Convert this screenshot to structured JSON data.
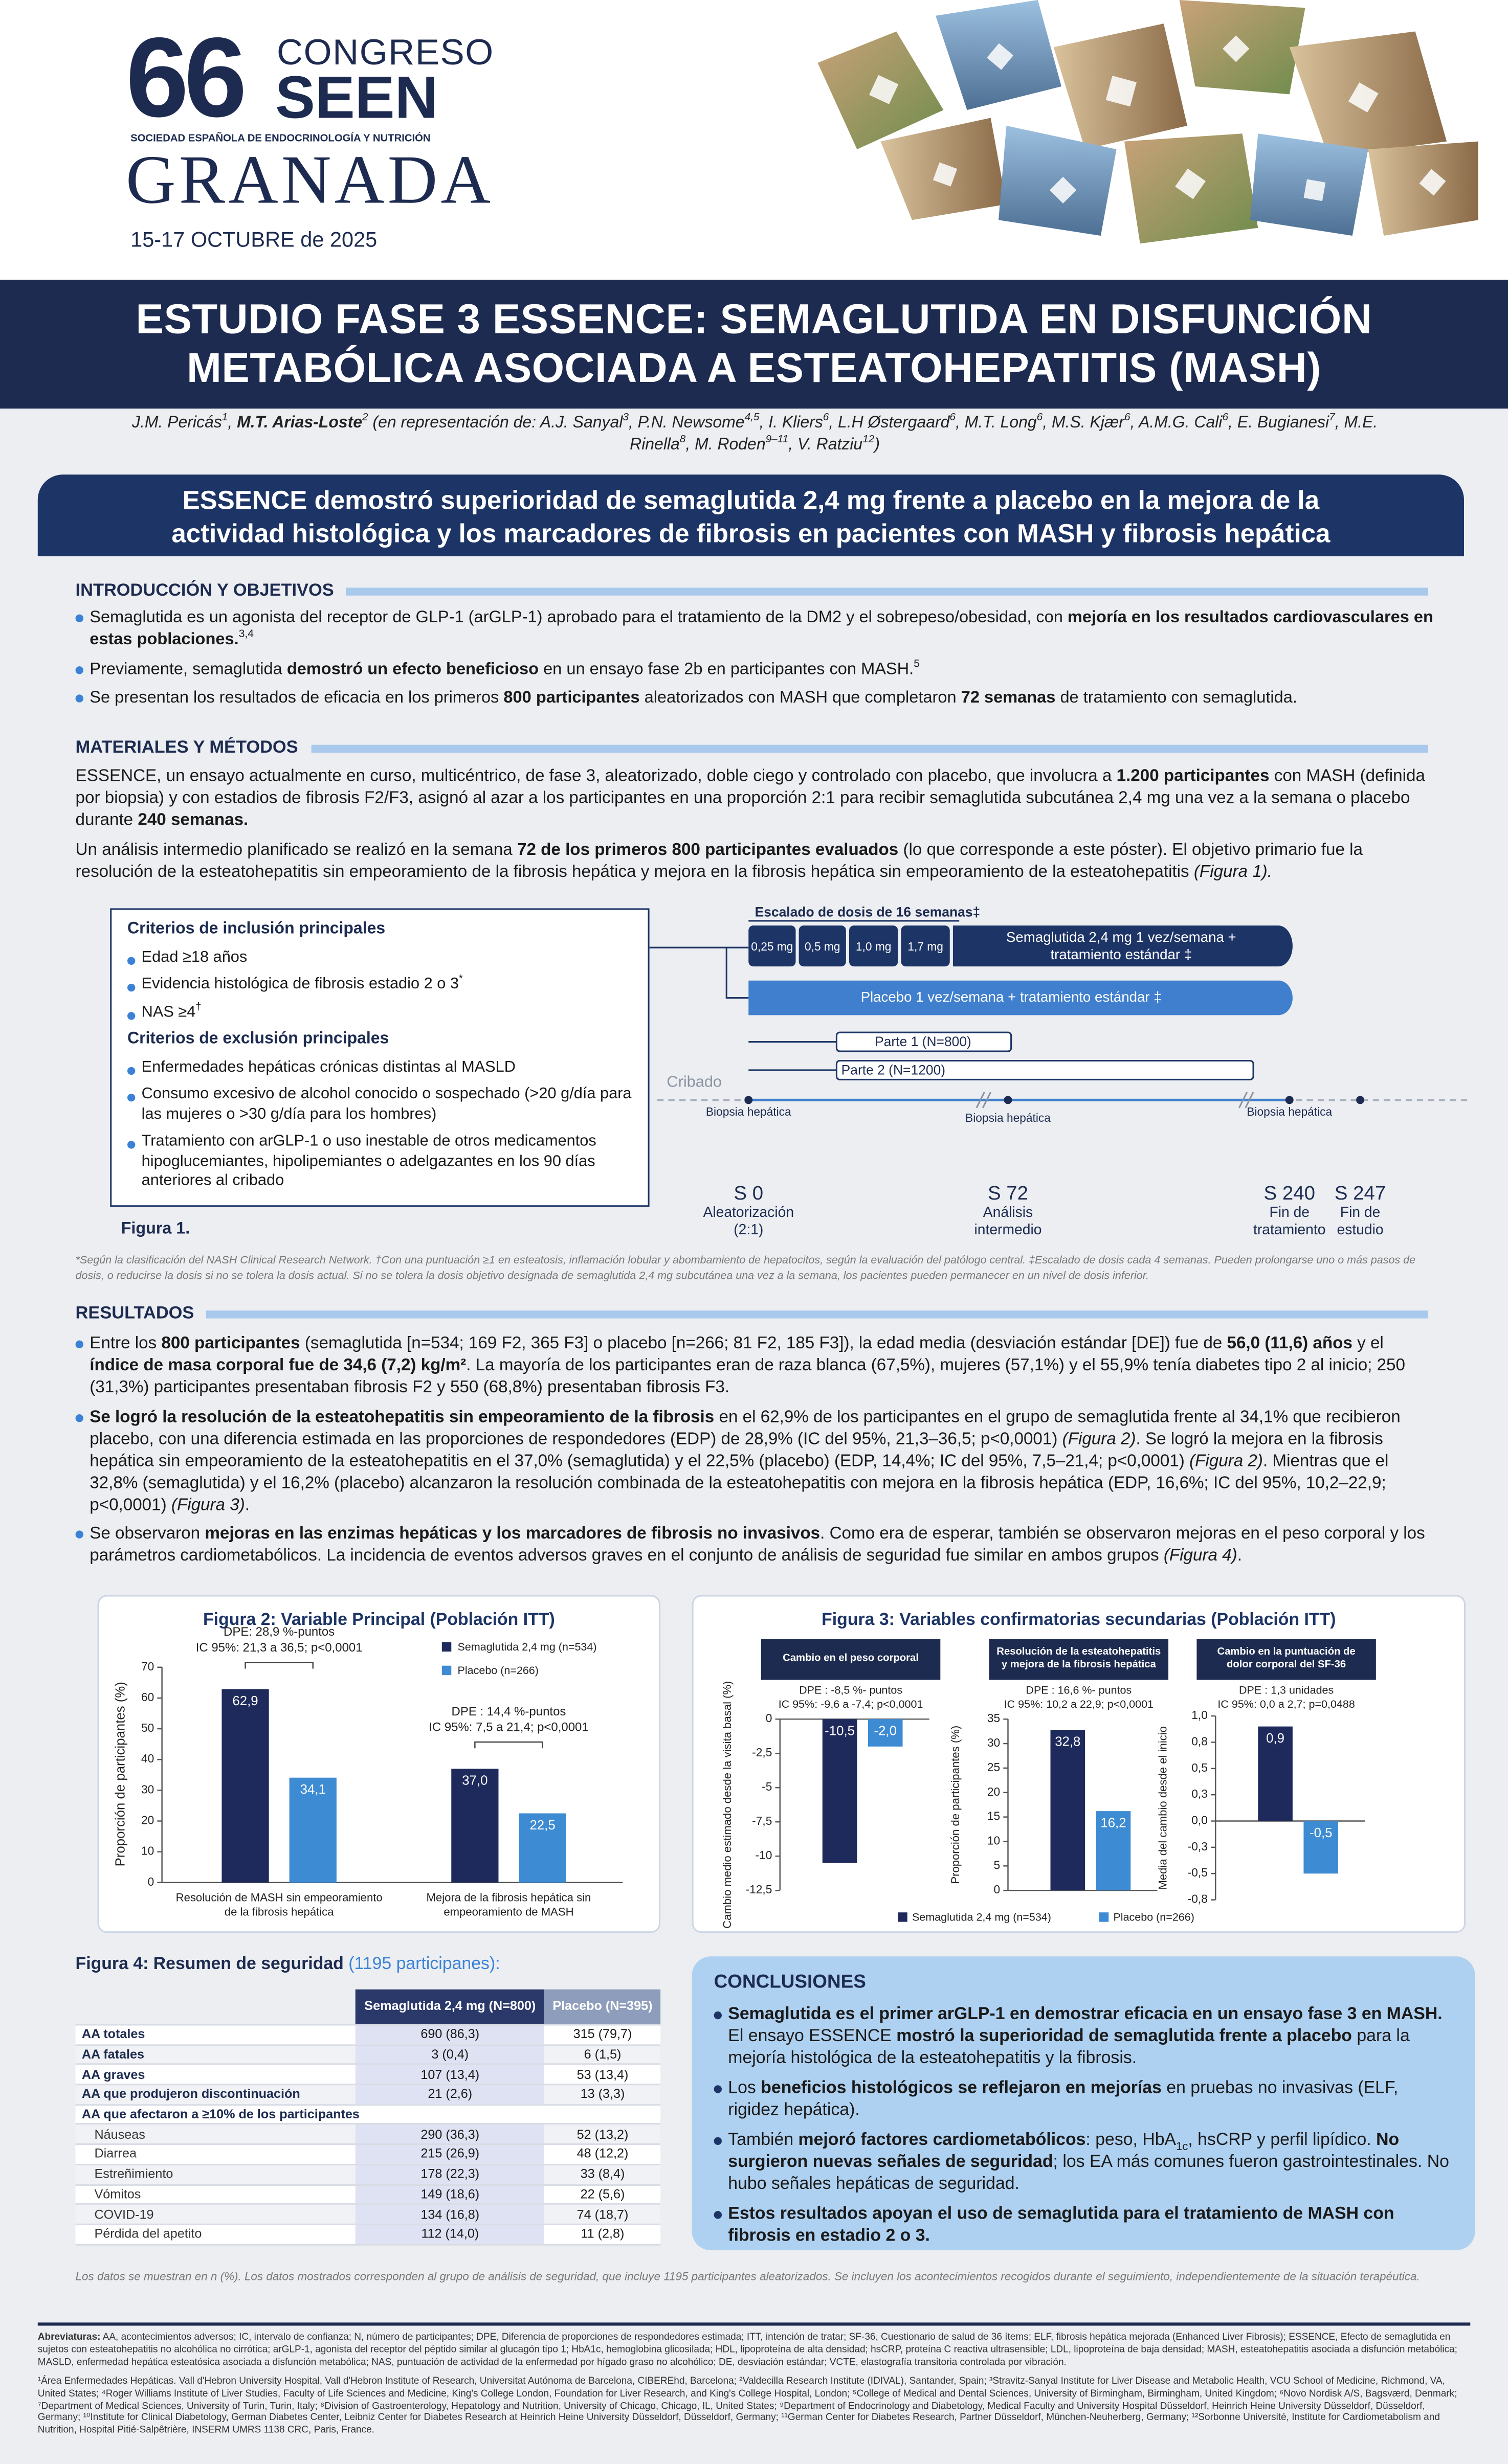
{
  "header": {
    "number": "66",
    "congress": "CONGRESO",
    "seen": "SEEN",
    "society": "SOCIEDAD ESPAÑOLA DE ENDOCRINOLOGÍA Y NUTRICIÓN",
    "city": "GRANADA",
    "dates": "15-17 OCTUBRE de 2025"
  },
  "title": [
    "ESTUDIO FASE 3 ESSENCE: SEMAGLUTIDA EN DISFUNCIÓN",
    "METABÓLICA ASOCIADA A ESTEATOHEPATITIS (MASH)"
  ],
  "authors": [
    "J.M. Pericás",
    {
      "sup": "1"
    },
    ", ",
    {
      "bold": "M.T. Arias-Loste"
    },
    {
      "sup": "2"
    },
    " (en representación de: A.J. Sanyal",
    {
      "sup": "3"
    },
    ", P.N. Newsome",
    {
      "sup": "4,5"
    },
    ", I. Kliers",
    {
      "sup": "6"
    },
    ", L.H Østergaard",
    {
      "sup": "6"
    },
    ", M.T. Long",
    {
      "sup": "6"
    },
    ", M.S. Kjær",
    {
      "sup": "6"
    },
    ", A.M.G. Cali",
    {
      "sup": "6"
    },
    ", E. Bugianesi",
    {
      "sup": "7"
    },
    ", M.E. Rinella",
    {
      "sup": "8"
    },
    ", M. Roden",
    {
      "sup": "9–11"
    },
    ", V. Ratziu",
    {
      "sup": "12"
    },
    ")"
  ],
  "banner": [
    "ESSENCE demostró superioridad de semaglutida 2,4 mg frente a placebo en la mejora de la",
    "actividad histológica y los marcadores de fibrosis en pacientes con MASH y fibrosis hepática"
  ],
  "intro": {
    "heading": "INTRODUCCIÓN Y OBJETIVOS",
    "bullets": [
      [
        "Semaglutida es un agonista del receptor de GLP-1 (arGLP-1) aprobado para el tratamiento de la DM2 y el sobrepeso/obesidad, con ",
        {
          "bold": "mejoría en los resultados cardiovasculares en estas poblaciones."
        },
        {
          "sup": "3,4"
        }
      ],
      [
        "Previamente, semaglutida ",
        {
          "bold": "demostró un efecto beneficioso"
        },
        " en un ensayo fase 2b en participantes con MASH.",
        {
          "sup": "5"
        }
      ],
      [
        "Se presentan los resultados de eficacia en los primeros ",
        {
          "bold": "800 participantes"
        },
        " aleatorizados con MASH que completaron ",
        {
          "bold": "72 semanas"
        },
        " de tratamiento con semaglutida."
      ]
    ]
  },
  "methods": {
    "heading": "MATERIALES Y MÉTODOS",
    "paragraphs": [
      [
        "ESSENCE, un ensayo actualmente en curso, multicéntrico, de fase 3, aleatorizado, doble ciego y controlado con placebo, que involucra a ",
        {
          "bold": "1.200 participantes"
        },
        " con MASH (definida por biopsia) y con estadios de fibrosis F2/F3, asignó al azar a los participantes en una proporción 2:1 para recibir semaglutida subcutánea 2,4 mg una vez a la semana o placebo durante ",
        {
          "bold": "240 semanas."
        }
      ],
      [
        "Un análisis intermedio planificado se realizó en la semana ",
        {
          "bold": "72 de los primeros 800 participantes evaluados"
        },
        " (lo que corresponde a este póster). El objetivo primario fue la resolución de la esteatohepatitis sin empeoramiento de la fibrosis hepática y mejora en la fibrosis hepática sin empeoramiento de la esteatohepatitis ",
        {
          "italic": "(Figura 1)."
        }
      ]
    ]
  },
  "figure1": {
    "inclusion_title": "Criterios de inclusión principales",
    "inclusion": [
      [
        "Edad ≥18 años"
      ],
      [
        "Evidencia histológica de fibrosis estadio 2 o 3",
        {
          "sup": "*"
        }
      ],
      [
        "NAS ≥4",
        {
          "sup": "†"
        }
      ]
    ],
    "exclusion_title": "Criterios de exclusión principales",
    "exclusion": [
      [
        "Enfermedades hepáticas crónicas distintas al MASLD"
      ],
      [
        "Consumo excesivo de alcohol conocido o sospechado (>20 g/día para las mujeres o >30 g/día para los hombres)"
      ],
      [
        "Tratamiento con arGLP-1 o uso inestable de otros medicamentos hipoglucemiantes, hipolipemiantes o adelgazantes en los 90 días anteriores al cribado"
      ]
    ],
    "caption": "Figura 1.",
    "escalation_title": "Escalado de dosis de 16 semanas‡",
    "doses": [
      "0,25 mg",
      "0,5 mg",
      "1,0 mg",
      "1,7 mg"
    ],
    "semaglutide_arm": [
      "Semaglutida 2,4 mg 1 vez/semana +",
      "tratamiento estándar ‡"
    ],
    "placebo_arm": "Placebo 1 vez/semana + tratamiento estándar ‡",
    "part1": "Parte 1 (N=800)",
    "part2": "Parte 2 (N=1200)",
    "screening": "Cribado",
    "biopsy": "Biopsia hepática",
    "milestones": [
      {
        "week": "S 0",
        "label": [
          "Aleatorización",
          "(2:1)"
        ]
      },
      {
        "week": "S 72",
        "label": [
          "Análisis",
          "intermedio"
        ]
      },
      {
        "week": "S 240",
        "label": [
          "Fin de",
          "tratamiento"
        ]
      },
      {
        "week": "S 247",
        "label": [
          "Fin de",
          "estudio"
        ]
      }
    ]
  },
  "footnote1": "*Según la clasificación del NASH Clinical Research Network. †Con una puntuación ≥1 en esteatosis, inflamación lobular y abombamiento de hepatocitos, según la evaluación del patólogo central. ‡Escalado de dosis cada 4 semanas. Pueden prolongarse uno o más pasos de dosis, o reducirse la dosis si no se tolera la dosis actual. Si no se tolera la dosis objetivo designada de semaglutida 2,4 mg subcutánea una vez a la semana, los pacientes pueden permanecer en un nivel de dosis inferior.",
  "results": {
    "heading": "RESULTADOS",
    "bullets": [
      [
        "Entre los ",
        {
          "bold": "800 participantes"
        },
        " (semaglutida [n=534; 169 F2, 365 F3] o placebo [n=266; 81 F2, 185 F3]), la edad media (desviación estándar [DE]) fue de ",
        {
          "bold": "56,0 (11,6) años"
        },
        " y el ",
        {
          "bold": "índice de masa corporal fue de 34,6 (7,2) kg/m²"
        },
        ". La mayoría de los participantes eran de raza blanca (67,5%), mujeres (57,1%) y el 55,9% tenía diabetes tipo 2 al inicio; 250 (31,3%) participantes presentaban fibrosis F2 y 550 (68,8%) presentaban fibrosis F3."
      ],
      [
        {
          "bold": "Se logró la resolución de la esteatohepatitis sin empeoramiento de la fibrosis"
        },
        " en el 62,9% de los participantes en el grupo de semaglutida frente al 34,1% que recibieron placebo, con una diferencia estimada en las proporciones de respondedores (EDP) de 28,9% (IC del 95%, 21,3–36,5; p<0,0001) ",
        {
          "italic": "(Figura 2)"
        },
        ". Se logró la mejora en la fibrosis hepática sin empeoramiento de la esteatohepatitis en el 37,0% (semaglutida) y el 22,5% (placebo) (EDP, 14,4%; IC del 95%, 7,5–21,4; p<0,0001) ",
        {
          "italic": "(Figura 2)"
        },
        ". Mientras que el 32,8% (semaglutida) y el 16,2% (placebo) alcanzaron la resolución combinada de la esteatohepatitis con mejora en la fibrosis hepática (EDP, 16,6%; IC del 95%, 10,2–22,9; p<0,0001) ",
        {
          "italic": "(Figura 3)"
        },
        "."
      ],
      [
        "Se observaron ",
        {
          "bold": "mejoras en las enzimas hepáticas y los marcadores de fibrosis no invasivos"
        },
        ". Como era de esperar, también se observaron mejoras en el peso corporal y los parámetros cardiometabólicos. La incidencia de eventos adversos graves en el conjunto de análisis de seguridad fue similar en ambos grupos ",
        {
          "italic": "(Figura 4)"
        },
        "."
      ]
    ]
  },
  "figure2": {
    "type": "bar",
    "title": "Figura 2: Variable Principal (Población ITT)",
    "ylabel": "Proporción de participantes (%)",
    "categories": [
      "Resolución de MASH sin empeoramiento de la fibrosis hepática",
      "Mejora de la fibrosis hepática sin empeoramiento de MASH"
    ],
    "series": [
      {
        "name": "Semaglutida 2,4 mg (n=534)",
        "color": "#1f2a5c",
        "values": [
          62.9,
          37.0
        ],
        "value_labels": [
          "62,9",
          "37,0"
        ]
      },
      {
        "name": "Placebo (n=266)",
        "color": "#3d8bd3",
        "values": [
          34.1,
          22.5
        ],
        "value_labels": [
          "34,1",
          "22,5"
        ]
      }
    ],
    "ylim": [
      0,
      70
    ],
    "yticks": [
      0,
      10,
      20,
      30,
      40,
      50,
      60,
      70
    ],
    "annotations": [
      [
        "DPE: 28,9 %-puntos",
        "IC 95%: 21,3 a 36,5; p<0,0001"
      ],
      [
        "DPE : 14,4 %-puntos",
        "IC 95%: 7,5 a 21,4; p<0,0001"
      ]
    ]
  },
  "figure3": {
    "title": "Figura 3: Variables confirmatorias secundarias (Población ITT)",
    "series": [
      {
        "name": "Semaglutida 2,4 mg (n=534)",
        "color": "#1f2a5c"
      },
      {
        "name": "Placebo (n=266)",
        "color": "#3d8bd3"
      }
    ],
    "panels": [
      {
        "type": "bar",
        "header": "Cambio en el peso corporal",
        "annotations": [
          "DPE : -8,5 %- puntos",
          "IC 95%: -9,6 a -7,4; p<0,0001"
        ],
        "ylabel": "Cambio medio estimado desde la visita basal (%)",
        "ylim": [
          -12.5,
          0
        ],
        "yticks": [
          0,
          {
            "value": -2.5,
            "label": "-2,5"
          },
          -5,
          {
            "value": -7.5,
            "label": "-7,5"
          },
          -10,
          {
            "value": -12.5,
            "label": "-12,5"
          }
        ],
        "values": [
          -10.5,
          -2.0
        ],
        "value_labels": [
          "-10,5",
          "-2,0"
        ]
      },
      {
        "type": "bar",
        "header": "Resolución de la esteatohepatitis y mejora de la fibrosis hepática",
        "annotations": [
          "DPE : 16,6 %- puntos",
          "IC 95%: 10,2 a 22,9; p<0,0001"
        ],
        "ylabel": "Proporción de participantes (%)",
        "ylim": [
          0,
          35
        ],
        "yticks": [
          0,
          5,
          10,
          15,
          20,
          25,
          30,
          35
        ],
        "values": [
          32.8,
          16.2
        ],
        "value_labels": [
          "32,8",
          "16,2"
        ]
      },
      {
        "type": "bar",
        "header": "Cambio en la puntuación de dolor corporal del SF-36",
        "annotations": [
          "DPE : 1,3 unidades",
          "IC 95%: 0,0 a 2,7; p=0,0488"
        ],
        "ylabel": "Media del cambio desde el inicio",
        "ylim": [
          -0.75,
          1.0
        ],
        "yticks": [
          {
            "value": 1.0,
            "label": "1,0"
          },
          {
            "value": 0.75,
            "label": "0,8"
          },
          {
            "value": 0.5,
            "label": "0,5"
          },
          {
            "value": 0.25,
            "label": "0,3"
          },
          {
            "value": 0,
            "label": "0,0"
          },
          {
            "value": -0.25,
            "label": "-0,3"
          },
          {
            "value": -0.5,
            "label": "-0,5"
          },
          {
            "value": -0.75,
            "label": "-0,8"
          }
        ],
        "values": [
          0.9,
          -0.5
        ],
        "value_labels": [
          "0,9",
          "-0,5"
        ]
      }
    ]
  },
  "figure4": {
    "title": "Figura 4: Resumen de seguridad",
    "subtitle": "(1195 participanes):",
    "columns": [
      "Semaglutida 2,4 mg (N=800)",
      "Placebo (N=395)"
    ],
    "rows": [
      [
        "AA totales",
        "690 (86,3)",
        "315 (79,7)"
      ],
      [
        "AA fatales",
        "3 (0,4)",
        "6 (1,5)"
      ],
      [
        "AA graves",
        "107 (13,4)",
        "53 (13,4)"
      ],
      [
        "AA que produjeron discontinuación",
        "21 (2,6)",
        "13 (3,3)"
      ],
      [
        "AA que afectaron a ≥10% de los participantes"
      ],
      [
        "Náuseas",
        "290 (36,3)",
        "52 (13,2)"
      ],
      [
        "Diarrea",
        "215 (26,9)",
        "48 (12,2)"
      ],
      [
        "Estreñimiento",
        "178 (22,3)",
        "33 (8,4)"
      ],
      [
        "Vómitos",
        "149 (18,6)",
        "22 (5,6)"
      ],
      [
        "COVID-19",
        "134 (16,8)",
        "74 (18,7)"
      ],
      [
        "Pérdida del apetito",
        "112 (14,0)",
        "11 (2,8)"
      ]
    ]
  },
  "conclusions": {
    "heading": "CONCLUSIONES",
    "bullets": [
      [
        {
          "bold": "Semaglutida es el primer arGLP-1 en demostrar eficacia en un ensayo fase 3 en MASH."
        },
        " El ensayo ESSENCE ",
        {
          "bold": "mostró la superioridad de semaglutida frente a placebo"
        },
        " para la mejoría histológica de la esteatohepatitis y la fibrosis."
      ],
      [
        "Los ",
        {
          "bold": "beneficios histológicos se reflejaron en mejorías"
        },
        " en pruebas no invasivas (ELF, rigidez hepática)."
      ],
      [
        "También ",
        {
          "bold": "mejoró factores cardiometabólicos"
        },
        ": peso, HbA",
        {
          "sub": "1c"
        },
        ", hsCRP y perfil lipídico. ",
        {
          "bold": "No surgieron nuevas señales de seguridad"
        },
        "; los EA más comunes fueron gastrointestinales. No hubo señales hepáticas de seguridad."
      ],
      [
        {
          "bold": "Estos resultados apoyan el uso de semaglutida para el tratamiento de MASH con fibrosis en estadio 2 o 3."
        }
      ]
    ]
  },
  "note": "Los datos se muestran en n (%). Los datos mostrados corresponden al grupo de análisis de seguridad, que incluye 1195 participantes aleatorizados. Se incluyen los acontecimientos recogidos durante el seguimiento, independientemente de la situación terapéutica.",
  "abbreviations": [
    {
      "bold": "Abreviaturas:"
    },
    " AA, acontecimientos adversos; IC, intervalo de confianza; N, número de participantes; DPE, Diferencia de proporciones de respondedores estimada; ITT, intención de tratar; SF-36, Cuestionario de salud de 36 ítems; ELF, fibrosis hepática mejorada (Enhanced Liver Fibrosis); ESSENCE, Efecto de semaglutida en sujetos con esteatohepatitis no alcohólica no cirrótica; arGLP-1, agonista del receptor del péptido similar al glucagón tipo 1; HbA1c, hemoglobina glicosilada; HDL, lipoproteína de alta densidad; hsCRP, proteína C reactiva ultrasensible; LDL, lipoproteína de baja densidad; MASH, esteatohepatitis asociada a disfunción metabólica; MASLD, enfermedad hepática esteatósica asociada a disfunción metabólica; NAS, puntuación de actividad de la enfermedad por hígado graso no alcohólico; DE, desviación estándar; VCTE, elastografía transitoria controlada por vibración."
  ],
  "affiliations": "¹Área Enfermedades Hepáticas. Vall d'Hebron University Hospital, Vall d'Hebron Institute of Research, Universitat Autónoma de Barcelona, CIBEREhd, Barcelona; ²Valdecilla Research Institute (IDIVAL), Santander, Spain; ³Stravitz-Sanyal Institute for Liver Disease and Metabolic Health, VCU School of Medicine, Richmond, VA, United States; ⁴Roger Williams Institute of Liver Studies, Faculty of Life Sciences and Medicine, King's College London, Foundation for Liver Research, and King's College Hospital, London; ⁵College of Medical and Dental Sciences, University of Birmingham, Birmingham, United Kingdom; ⁶Novo Nordisk A/S, Bagsværd, Denmark; ⁷Department of Medical Sciences, University of Turin, Turin, Italy; ⁸Division of Gastroenterology, Hepatology and Nutrition, University of Chicago, Chicago, IL, United States; ⁹Department of Endocrinology and Diabetology, Medical Faculty and University Hospital Düsseldorf, Heinrich Heine University Düsseldorf, Düsseldorf, Germany; ¹⁰Institute for Clinical Diabetology, German Diabetes Center, Leibniz Center for Diabetes Research at Heinrich Heine University Düsseldorf, Düsseldorf, Germany; ¹¹German Center for Diabetes Research, Partner Düsseldorf, München-Neuherberg, Germany; ¹²Sorbonne Université, Institute for Cardiometabolism and Nutrition, Hospital Pitié-Salpêtrière, INSERM UMRS 1138 CRC, Paris, France."
}
